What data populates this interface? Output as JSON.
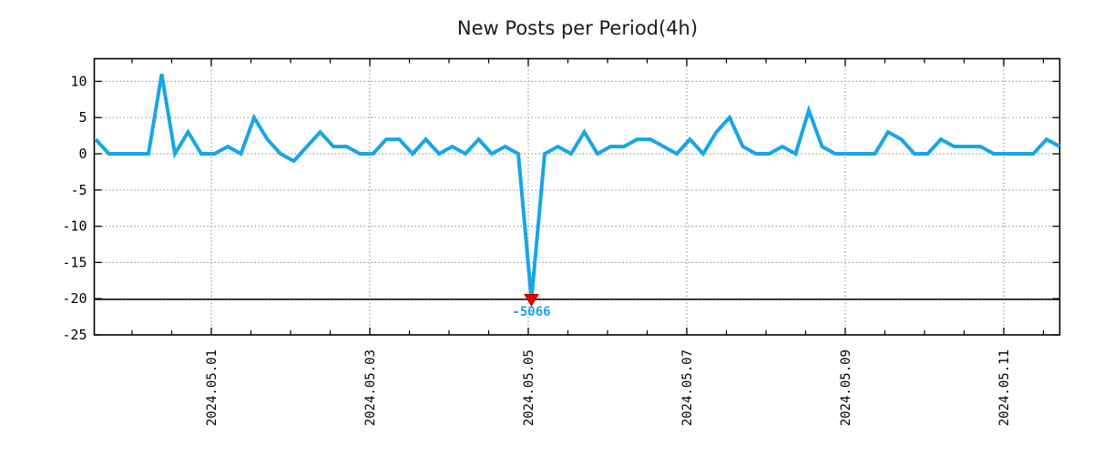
{
  "chart_data": {
    "type": "line",
    "title": "New Posts per Period(4h)",
    "x_interval_hours": 4,
    "x_ticks": [
      {
        "label": "2024.05.01",
        "day_offset": 0
      },
      {
        "label": "2024.05.03",
        "day_offset": 2
      },
      {
        "label": "2024.05.05",
        "day_offset": 4
      },
      {
        "label": "2024.05.07",
        "day_offset": 6
      },
      {
        "label": "2024.05.09",
        "day_offset": 8
      },
      {
        "label": "2024.05.11",
        "day_offset": 10
      }
    ],
    "y_ticks": [
      {
        "label": "10",
        "value": 10
      },
      {
        "label": "5",
        "value": 5
      },
      {
        "label": "0",
        "value": 0
      },
      {
        "label": "-5",
        "value": -5
      },
      {
        "label": "-10",
        "value": -10
      },
      {
        "label": "-15",
        "value": -15
      },
      {
        "label": "-20",
        "value": -20
      },
      {
        "label": "-25",
        "value": -25
      }
    ],
    "ylim": [
      -25,
      13.1
    ],
    "grid": "dotted",
    "legend": "none",
    "values": [
      2,
      0,
      0,
      0,
      0,
      11,
      0,
      3,
      0,
      0,
      1,
      0,
      5,
      2,
      0,
      -1,
      1,
      3,
      1,
      1,
      0,
      0,
      2,
      2,
      0,
      2,
      0,
      1,
      0,
      2,
      0,
      1,
      0,
      -5066,
      0,
      1,
      0,
      3,
      0,
      1,
      1,
      2,
      2,
      1,
      0,
      2,
      0,
      3,
      5,
      1,
      0,
      0,
      1,
      0,
      6,
      1,
      0,
      0,
      0,
      0,
      3,
      2,
      0,
      0,
      2,
      1,
      1,
      1,
      0,
      0,
      0,
      0,
      2,
      1
    ],
    "min_annotation": {
      "label": "-5066",
      "index": 33,
      "value": -5066,
      "marker": "triangle-down"
    },
    "clip_line_value": -20.1,
    "colors": {
      "line": "#18a5e8",
      "marker": "#e60000",
      "marker_edge": "#b00000",
      "annotation_text": "#18a5e8",
      "grid": "#9b9b9b",
      "axis": "#000000",
      "background": "#ffffff"
    }
  }
}
